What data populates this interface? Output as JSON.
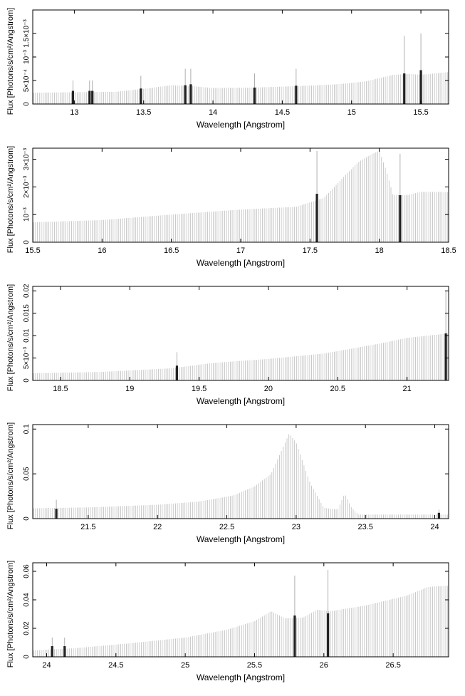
{
  "chart_data": [
    {
      "type": "bar",
      "xlabel": "Wavelength [Angstrom]",
      "ylabel": "Flux [Photons/s/cm²/Angstrom]",
      "xlim": [
        12.7,
        15.7
      ],
      "ylim": [
        0,
        0.002
      ],
      "x_ticks": [
        {
          "v": 13,
          "label": "13"
        },
        {
          "v": 13.5,
          "label": "13.5"
        },
        {
          "v": 14,
          "label": "14"
        },
        {
          "v": 14.5,
          "label": "14.5"
        },
        {
          "v": 15,
          "label": "15"
        },
        {
          "v": 15.5,
          "label": "15.5"
        }
      ],
      "y_ticks": [
        {
          "v": 0,
          "label": "0"
        },
        {
          "v": 0.0005,
          "label": "5×10⁻⁴"
        },
        {
          "v": 0.001,
          "label": "10⁻³"
        },
        {
          "v": 0.0015,
          "label": "1.5×10⁻³"
        }
      ],
      "continuum": [
        [
          12.7,
          0.00024
        ],
        [
          13.0,
          0.00025
        ],
        [
          13.3,
          0.00026
        ],
        [
          13.55,
          0.00034
        ],
        [
          13.7,
          0.0004
        ],
        [
          13.85,
          0.00038
        ],
        [
          14.0,
          0.00034
        ],
        [
          14.3,
          0.00035
        ],
        [
          14.6,
          0.00038
        ],
        [
          14.9,
          0.00042
        ],
        [
          15.1,
          0.00048
        ],
        [
          15.3,
          0.00062
        ],
        [
          15.42,
          0.00064
        ],
        [
          15.5,
          0.00062
        ],
        [
          15.7,
          0.00068
        ]
      ],
      "lines": [
        {
          "x": 12.99,
          "y": 0.00028,
          "top": 0.0005
        },
        {
          "x": 13.11,
          "y": 0.00028,
          "top": 0.0005
        },
        {
          "x": 13.13,
          "y": 0.00028,
          "top": 0.0005
        },
        {
          "x": 13.48,
          "y": 0.00033,
          "top": 0.0006
        },
        {
          "x": 13.8,
          "y": 0.0004,
          "top": 0.00075
        },
        {
          "x": 13.84,
          "y": 0.00042,
          "top": 0.00075
        },
        {
          "x": 14.3,
          "y": 0.00035,
          "top": 0.00065
        },
        {
          "x": 14.6,
          "y": 0.00039,
          "top": 0.00075
        },
        {
          "x": 15.38,
          "y": 0.00065,
          "top": 0.00145
        },
        {
          "x": 15.5,
          "y": 0.00072,
          "top": 0.0015
        }
      ]
    },
    {
      "type": "bar",
      "xlabel": "Wavelength [Angstrom]",
      "ylabel": "Flux [Photons/s/cm²/Angstrom]",
      "xlim": [
        15.5,
        18.5
      ],
      "ylim": [
        0,
        0.0034
      ],
      "x_ticks": [
        {
          "v": 15.5,
          "label": "15.5"
        },
        {
          "v": 16,
          "label": "16"
        },
        {
          "v": 16.5,
          "label": "16.5"
        },
        {
          "v": 17,
          "label": "17"
        },
        {
          "v": 17.5,
          "label": "17.5"
        },
        {
          "v": 18,
          "label": "18"
        },
        {
          "v": 18.5,
          "label": "18.5"
        }
      ],
      "y_ticks": [
        {
          "v": 0,
          "label": "0"
        },
        {
          "v": 0.001,
          "label": "10⁻³"
        },
        {
          "v": 0.002,
          "label": "2×10⁻³"
        },
        {
          "v": 0.003,
          "label": "3×10⁻³"
        }
      ],
      "continuum": [
        [
          15.5,
          0.00072
        ],
        [
          16.0,
          0.0008
        ],
        [
          16.5,
          0.001
        ],
        [
          17.0,
          0.00118
        ],
        [
          17.4,
          0.00128
        ],
        [
          17.6,
          0.0016
        ],
        [
          17.75,
          0.0024
        ],
        [
          17.85,
          0.0029
        ],
        [
          17.95,
          0.0032
        ],
        [
          18.0,
          0.0033
        ],
        [
          18.05,
          0.0026
        ],
        [
          18.1,
          0.0017
        ],
        [
          18.2,
          0.0017
        ],
        [
          18.3,
          0.00182
        ],
        [
          18.5,
          0.00182
        ]
      ],
      "lines": [
        {
          "x": 17.55,
          "y": 0.00175,
          "top": 0.0033
        },
        {
          "x": 18.15,
          "y": 0.0017,
          "top": 0.0032
        }
      ]
    },
    {
      "type": "bar",
      "xlabel": "Wavelength [Angstrom]",
      "ylabel": "Flux [Photons/s/cm²/Angstrom]",
      "xlim": [
        18.3,
        21.3
      ],
      "ylim": [
        0,
        0.021
      ],
      "x_ticks": [
        {
          "v": 18.5,
          "label": "18.5"
        },
        {
          "v": 19,
          "label": "19"
        },
        {
          "v": 19.5,
          "label": "19.5"
        },
        {
          "v": 20,
          "label": "20"
        },
        {
          "v": 20.5,
          "label": "20.5"
        },
        {
          "v": 21,
          "label": "21"
        }
      ],
      "y_ticks": [
        {
          "v": 0,
          "label": "0"
        },
        {
          "v": 0.005,
          "label": "5×10⁻³"
        },
        {
          "v": 0.01,
          "label": "0.01"
        },
        {
          "v": 0.015,
          "label": "0.015"
        },
        {
          "v": 0.02,
          "label": "0.02"
        }
      ],
      "continuum": [
        [
          18.3,
          0.0016
        ],
        [
          18.8,
          0.0019
        ],
        [
          19.3,
          0.0027
        ],
        [
          19.6,
          0.0039
        ],
        [
          20.0,
          0.0048
        ],
        [
          20.4,
          0.006
        ],
        [
          20.8,
          0.0082
        ],
        [
          21.0,
          0.0095
        ],
        [
          21.3,
          0.0105
        ]
      ],
      "lines": [
        {
          "x": 19.34,
          "y": 0.0033,
          "top": 0.0063
        },
        {
          "x": 21.28,
          "y": 0.0105,
          "top": 0.02
        }
      ]
    },
    {
      "type": "bar",
      "xlabel": "Wavelength [Angstrom]",
      "ylabel": "Flux [Photons/s/cm²/Angstrom]",
      "xlim": [
        21.1,
        24.1
      ],
      "ylim": [
        0,
        0.105
      ],
      "x_ticks": [
        {
          "v": 21.5,
          "label": "21.5"
        },
        {
          "v": 22,
          "label": "22"
        },
        {
          "v": 22.5,
          "label": "22.5"
        },
        {
          "v": 23,
          "label": "23"
        },
        {
          "v": 23.5,
          "label": "23.5"
        },
        {
          "v": 24,
          "label": "24"
        }
      ],
      "y_ticks": [
        {
          "v": 0,
          "label": "0"
        },
        {
          "v": 0.05,
          "label": "0.05"
        },
        {
          "v": 0.1,
          "label": "0.1"
        }
      ],
      "continuum": [
        [
          21.1,
          0.0115
        ],
        [
          21.5,
          0.0125
        ],
        [
          22.0,
          0.0155
        ],
        [
          22.3,
          0.019
        ],
        [
          22.55,
          0.026
        ],
        [
          22.7,
          0.036
        ],
        [
          22.82,
          0.05
        ],
        [
          22.9,
          0.078
        ],
        [
          22.95,
          0.095
        ],
        [
          23.0,
          0.085
        ],
        [
          23.1,
          0.04
        ],
        [
          23.2,
          0.012
        ],
        [
          23.3,
          0.01
        ],
        [
          23.35,
          0.028
        ],
        [
          23.4,
          0.012
        ],
        [
          23.45,
          0.0045
        ],
        [
          23.6,
          0.0045
        ],
        [
          24.1,
          0.0045
        ]
      ],
      "lines": [
        {
          "x": 21.27,
          "y": 0.011,
          "top": 0.021
        },
        {
          "x": 24.03,
          "y": 0.0065,
          "top": 0.01
        }
      ]
    },
    {
      "type": "bar",
      "xlabel": "Wavelength [Angstrom]",
      "ylabel": "Flux [Photons/s/cm²/Angstrom]",
      "xlim": [
        23.9,
        26.9
      ],
      "ylim": [
        0,
        0.066
      ],
      "x_ticks": [
        {
          "v": 24,
          "label": "24"
        },
        {
          "v": 24.5,
          "label": "24.5"
        },
        {
          "v": 25,
          "label": "25"
        },
        {
          "v": 25.5,
          "label": "25.5"
        },
        {
          "v": 26,
          "label": "26"
        },
        {
          "v": 26.5,
          "label": "26.5"
        }
      ],
      "y_ticks": [
        {
          "v": 0,
          "label": "0"
        },
        {
          "v": 0.02,
          "label": "0.02"
        },
        {
          "v": 0.04,
          "label": "0.04"
        },
        {
          "v": 0.06,
          "label": "0.06"
        }
      ],
      "continuum": [
        [
          23.9,
          0.0045
        ],
        [
          24.2,
          0.006
        ],
        [
          24.6,
          0.0095
        ],
        [
          25.0,
          0.0135
        ],
        [
          25.3,
          0.019
        ],
        [
          25.5,
          0.025
        ],
        [
          25.62,
          0.032
        ],
        [
          25.72,
          0.027
        ],
        [
          25.85,
          0.0275
        ],
        [
          25.95,
          0.033
        ],
        [
          26.05,
          0.032
        ],
        [
          26.3,
          0.036
        ],
        [
          26.6,
          0.043
        ],
        [
          26.75,
          0.049
        ],
        [
          26.9,
          0.05
        ]
      ],
      "lines": [
        {
          "x": 24.04,
          "y": 0.0075,
          "top": 0.0135
        },
        {
          "x": 24.13,
          "y": 0.0075,
          "top": 0.0135
        },
        {
          "x": 25.79,
          "y": 0.029,
          "top": 0.057
        },
        {
          "x": 26.03,
          "y": 0.0305,
          "top": 0.061
        }
      ]
    }
  ]
}
